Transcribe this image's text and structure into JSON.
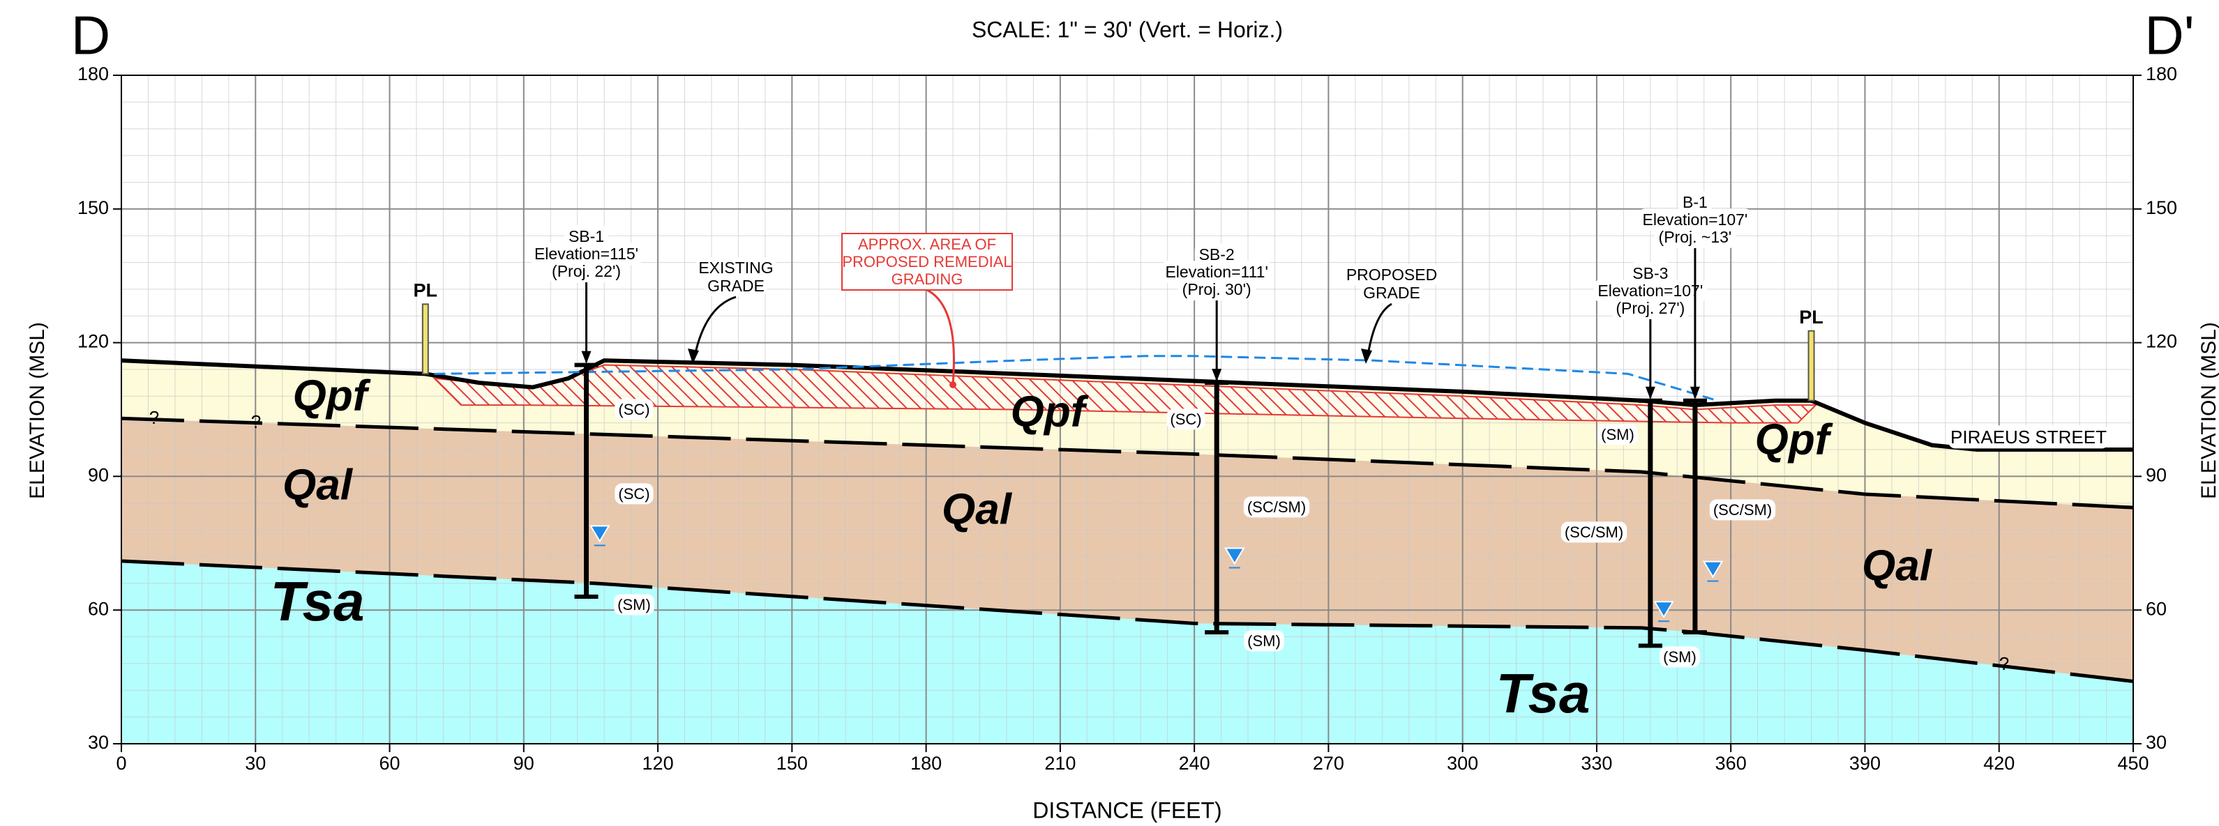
{
  "header": {
    "left_label": "D",
    "right_label": "D'",
    "subtitle": "SCALE: 1\" = 30' (Vert. = Horiz.)"
  },
  "chart_data": {
    "type": "cross-section",
    "x_label": "DISTANCE (FEET)",
    "y_label": "ELEVATION (MSL)",
    "xlim": [
      0,
      450
    ],
    "xticks": [
      0,
      30,
      60,
      90,
      120,
      150,
      180,
      210,
      240,
      270,
      300,
      330,
      360,
      390,
      420,
      450
    ],
    "ylim": [
      30,
      180
    ],
    "yticks": [
      30,
      60,
      90,
      120,
      150,
      180
    ],
    "grid": true,
    "minor_grid_divisions": 5,
    "layers": [
      {
        "name": "Qpf",
        "color": "#fdfbd9",
        "line_style": "solid",
        "x": [
          0,
          68,
          80,
          92,
          100,
          108,
          150,
          200,
          250,
          300,
          340,
          352,
          370,
          378,
          390,
          405,
          415,
          450
        ],
        "y": [
          116,
          113,
          111,
          110,
          112,
          116,
          115,
          113,
          111,
          109,
          107,
          106,
          107,
          107,
          102,
          97,
          96,
          96
        ]
      },
      {
        "name": "Qal",
        "color": "#e8c8ad",
        "line_style": "dashed",
        "x": [
          0,
          120,
          240,
          340,
          390,
          450
        ],
        "y": [
          103,
          99,
          95,
          91,
          86,
          83
        ]
      },
      {
        "name": "Tsa",
        "color": "#b4fffe",
        "line_style": "dashed",
        "x": [
          0,
          106,
          240,
          340,
          352,
          390,
          450
        ],
        "y": [
          71,
          66,
          57,
          56,
          55,
          51,
          44
        ]
      }
    ],
    "proposed_grade": {
      "color": "#1e88e5",
      "x": [
        70,
        150,
        200,
        229,
        240,
        280,
        337,
        357
      ],
      "y": [
        113,
        114,
        116,
        117,
        117,
        116,
        113,
        107
      ]
    },
    "remedial_area": {
      "color": "#e53935",
      "x": [
        70,
        80,
        92,
        100,
        108,
        150,
        200,
        250,
        300,
        340,
        352,
        370,
        379,
        375,
        360,
        300,
        200,
        90,
        76
      ],
      "y": [
        112,
        111,
        110,
        112,
        115,
        114,
        112,
        110,
        108,
        106,
        105,
        106,
        106,
        102,
        102,
        103,
        105,
        106,
        106
      ]
    },
    "borings": [
      {
        "lines": [
          "SB-1",
          "Elevation=115'",
          "(Proj. 22')"
        ],
        "x": 104,
        "top": 115,
        "bottom": 63,
        "water_x": 107,
        "water": 77
      },
      {
        "lines": [
          "SB-2",
          "Elevation=111'",
          "(Proj. 30')"
        ],
        "x": 245,
        "top": 111,
        "bottom": 55,
        "water_x": 249,
        "water": 72
      },
      {
        "lines": [
          "SB-3",
          "Elevation=107'",
          "(Proj. 27')"
        ],
        "x": 342,
        "top": 107,
        "bottom": 52,
        "water_x": 345,
        "water": 60
      },
      {
        "lines": [
          "B-1",
          "Elevation=107'",
          "(Proj. ~13'"
        ],
        "x": 352,
        "top": 107,
        "bottom": 55,
        "water_x": 356,
        "water": 69
      }
    ],
    "property_lines": [
      {
        "label": "PL",
        "x": 68
      },
      {
        "label": "PL",
        "x": 378
      }
    ],
    "annotations": {
      "existing_grade": [
        "EXISTING",
        "GRADE"
      ],
      "proposed_grade": [
        "PROPOSED",
        "GRADE"
      ],
      "remedial": [
        "APPROX. AREA OF",
        "PROPOSED REMEDIAL",
        "GRADING"
      ],
      "street": "PIRAEUS STREET"
    },
    "soil_labels": [
      "(SC)",
      "(SC)",
      "(SM)",
      "(SC)",
      "(SC/SM)",
      "(SM)",
      "(SM)",
      "(SC/SM)",
      "(SC/SM)",
      "(SM)"
    ],
    "question_marks": [
      "?",
      "?",
      "?"
    ]
  }
}
